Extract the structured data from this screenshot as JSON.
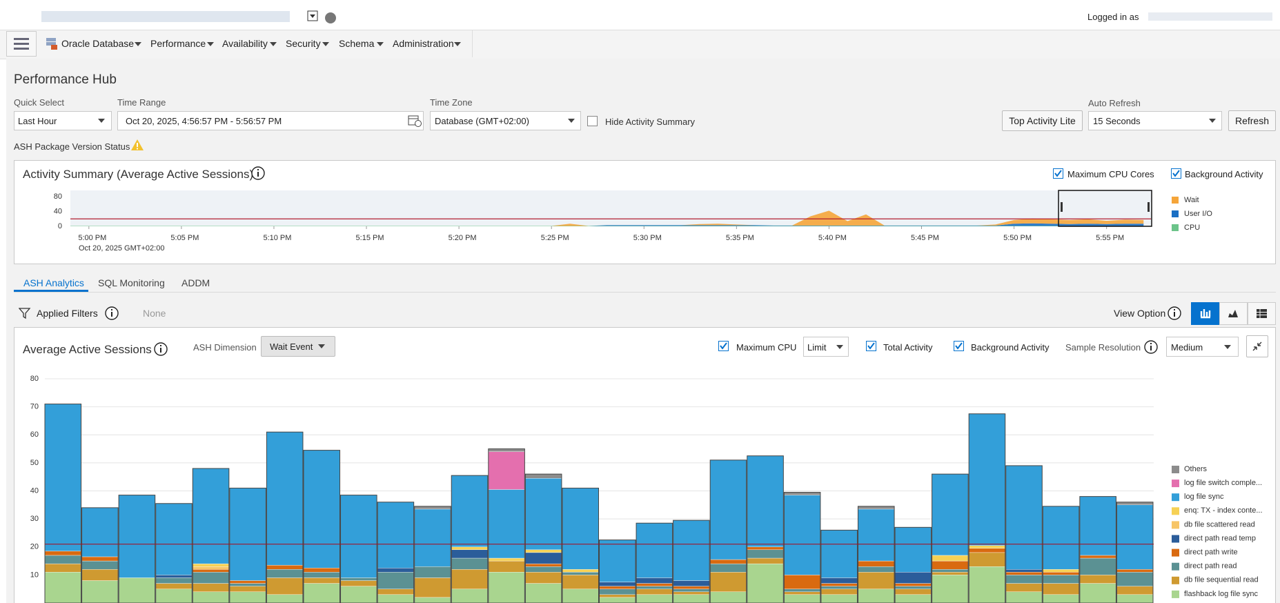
{
  "header": {
    "logged_in": "Logged in as"
  },
  "nav": {
    "items": [
      "Oracle Database",
      "Performance",
      "Availability",
      "Security",
      "Schema",
      "Administration"
    ]
  },
  "page_title": "Performance Hub",
  "controls": {
    "quick_select_label": "Quick Select",
    "quick_select": "Last Hour",
    "time_range_label": "Time Range",
    "time_range": "Oct 20, 2025, 4:56:57 PM - 5:56:57 PM",
    "time_zone_label": "Time Zone",
    "time_zone": "Database (GMT+02:00)",
    "hide_activity_summary": "Hide Activity Summary",
    "top_activity_lite": "Top Activity Lite",
    "auto_refresh_label": "Auto Refresh",
    "auto_refresh": "15 Seconds",
    "refresh": "Refresh",
    "ash_status": "ASH Package Version Status"
  },
  "tabs": [
    "ASH Analytics",
    "SQL Monitoring",
    "ADDM"
  ],
  "filters": {
    "label": "Applied Filters",
    "value": "None",
    "view_option": "View Option"
  },
  "ash_panel": {
    "ash_dimension_label": "ASH Dimension",
    "ash_dimension": "Wait Event",
    "maximum_cpu": "Maximum CPU",
    "limit": "Limit",
    "total_activity": "Total Activity",
    "background_activity": "Background Activity",
    "sample_resolution_label": "Sample Resolution",
    "sample_resolution": "Medium"
  },
  "chart_data": [
    {
      "type": "area",
      "stacked": true,
      "title": "Activity Summary (Average Active Sessions)",
      "checkboxes": [
        "Maximum CPU Cores",
        "Background Activity"
      ],
      "date_label": "Oct 20, 2025 GMT+02:00",
      "xlim": [
        0,
        58.4
      ],
      "xticks": [
        {
          "value": 1,
          "label": "5:00 PM"
        },
        {
          "value": 6,
          "label": "5:05 PM"
        },
        {
          "value": 11,
          "label": "5:10 PM"
        },
        {
          "value": 16,
          "label": "5:15 PM"
        },
        {
          "value": 21,
          "label": "5:20 PM"
        },
        {
          "value": 26,
          "label": "5:25 PM"
        },
        {
          "value": 31,
          "label": "5:30 PM"
        },
        {
          "value": 36,
          "label": "5:35 PM"
        },
        {
          "value": 41,
          "label": "5:40 PM"
        },
        {
          "value": 46,
          "label": "5:45 PM"
        },
        {
          "value": 51,
          "label": "5:50 PM"
        },
        {
          "value": 56,
          "label": "5:55 PM"
        }
      ],
      "ylim": [
        0,
        80
      ],
      "yticks": [
        0,
        40,
        80
      ],
      "max_cpu": 20,
      "series": [
        {
          "name": "Wait",
          "color": "#f5a53a",
          "values": [
            0,
            0,
            0,
            0,
            0,
            0,
            0,
            0,
            0,
            0,
            0,
            0,
            0,
            0,
            0,
            0,
            0,
            0,
            0,
            0,
            0,
            0,
            0,
            0,
            0,
            0,
            0,
            6,
            0,
            0,
            0,
            0,
            0,
            0,
            3,
            4,
            2,
            0,
            0,
            0,
            25,
            40,
            12,
            30,
            0,
            0,
            0,
            0,
            0,
            0,
            3,
            10,
            13,
            12,
            11,
            12,
            9,
            11,
            10
          ]
        },
        {
          "name": "User I/O",
          "color": "#1a6fc4",
          "values": [
            0,
            0,
            0,
            0,
            0,
            0,
            0,
            0,
            0,
            0,
            0,
            0,
            0,
            0,
            0,
            0,
            0,
            0,
            0,
            0,
            0,
            0,
            0,
            0,
            0,
            0,
            0,
            0,
            0,
            2,
            2,
            2,
            2,
            2,
            2,
            2,
            2,
            2,
            1,
            1,
            1,
            1,
            1,
            1,
            1,
            1,
            1,
            1,
            1,
            1,
            1,
            6,
            7,
            6,
            5,
            6,
            5,
            6,
            6
          ]
        },
        {
          "name": "CPU",
          "color": "#6cc48a",
          "values": [
            1,
            1,
            1,
            1,
            1,
            1,
            1,
            1,
            1,
            1,
            1,
            1,
            1,
            1,
            1,
            1,
            1,
            1,
            1,
            1,
            1,
            1,
            1,
            1,
            1,
            1,
            1,
            1,
            1,
            1,
            1,
            1,
            1,
            1,
            1,
            1,
            1,
            1,
            1,
            1,
            1,
            1,
            1,
            1,
            1,
            1,
            1,
            1,
            1,
            1,
            1,
            1,
            1,
            1,
            1,
            1,
            1,
            1,
            1
          ]
        }
      ]
    },
    {
      "type": "bar",
      "stacked": true,
      "title": "Average Active Sessions",
      "ylim": [
        0,
        80
      ],
      "yticks": [
        10,
        20,
        30,
        40,
        50,
        60,
        70,
        80
      ],
      "grid": true,
      "max_cpu": 21,
      "series": [
        {
          "name": "flashback log file sync",
          "color": "#a9d58f",
          "values": [
            11,
            8,
            9,
            5,
            4,
            4,
            3,
            7,
            6,
            3,
            2,
            5,
            11,
            7,
            5,
            2,
            3,
            3,
            4,
            14,
            3,
            3,
            5,
            3,
            10,
            13,
            4,
            3,
            7,
            3
          ]
        },
        {
          "name": "db file sequential read",
          "color": "#cf9a31",
          "values": [
            3,
            4,
            0,
            2,
            3,
            2,
            6,
            2,
            2,
            2,
            7,
            7,
            4,
            4,
            5,
            1,
            2,
            1,
            7,
            2,
            1,
            2,
            6,
            2,
            1,
            5,
            3,
            4,
            3,
            3
          ]
        },
        {
          "name": "direct path read",
          "color": "#5b9193",
          "values": [
            3,
            3,
            0,
            2,
            4,
            1,
            3,
            2,
            1,
            6,
            4,
            4,
            0,
            2,
            1,
            2,
            1,
            1,
            3,
            3,
            1,
            1,
            2,
            1,
            1,
            0,
            3,
            3,
            6,
            5
          ]
        },
        {
          "name": "direct path write",
          "color": "#d96a10",
          "values": [
            1.5,
            1.5,
            0,
            0,
            1,
            1,
            1.5,
            1.5,
            0,
            0,
            0,
            0,
            0,
            1,
            0,
            1,
            1,
            1,
            1.5,
            1,
            5,
            1,
            2,
            1,
            3,
            1.5,
            1,
            1,
            1,
            1
          ]
        },
        {
          "name": "direct path read temp",
          "color": "#2b5d9a",
          "values": [
            0,
            0,
            0,
            1,
            0,
            0,
            0,
            0,
            0,
            1.5,
            0,
            3,
            0,
            4,
            0,
            1.5,
            2,
            2,
            0,
            0,
            0,
            2,
            0,
            4,
            0,
            0,
            1,
            0,
            0,
            0
          ]
        },
        {
          "name": "db file scattered read",
          "color": "#f7c566",
          "values": [
            0,
            0,
            0,
            0,
            1,
            0,
            0,
            0,
            0,
            0,
            0,
            0,
            0,
            0,
            0,
            0,
            0,
            0,
            0,
            0,
            0,
            0,
            0,
            0,
            0,
            0,
            0,
            0,
            0,
            0
          ]
        },
        {
          "name": "enq: TX - index conte...",
          "color": "#f6d155",
          "values": [
            0,
            0,
            0,
            0,
            1,
            0,
            0,
            0,
            0,
            0,
            0,
            1,
            1,
            1,
            1,
            0,
            0,
            0,
            0,
            0,
            0,
            0,
            0,
            0,
            2,
            1,
            0,
            1,
            0,
            0
          ]
        },
        {
          "name": "log file sync",
          "color": "#339fd9",
          "values": [
            52.5,
            17.5,
            29.5,
            25.5,
            34,
            33,
            47.5,
            42,
            29.5,
            23.5,
            20.5,
            25.5,
            24.5,
            25.5,
            29,
            15,
            19.5,
            21.5,
            35.5,
            32.5,
            28.5,
            17,
            18.5,
            16,
            29,
            47,
            37,
            22.5,
            21,
            23
          ]
        },
        {
          "name": "log file switch comple...",
          "color": "#e46fae",
          "values": [
            0,
            0,
            0,
            0,
            0,
            0,
            0,
            0,
            0,
            0,
            0,
            0,
            13.5,
            0,
            0,
            0,
            0,
            0,
            0,
            0,
            0,
            0,
            0,
            0,
            0,
            0,
            0,
            0,
            0,
            0
          ]
        },
        {
          "name": "Others",
          "color": "#8c8c8c",
          "values": [
            0,
            0,
            0,
            0,
            0,
            0,
            0,
            0,
            0,
            0,
            1,
            0,
            1,
            1.5,
            0,
            0,
            0,
            0,
            0,
            0,
            1,
            0,
            1,
            0,
            0,
            0,
            0,
            0,
            0,
            1
          ]
        }
      ]
    }
  ]
}
